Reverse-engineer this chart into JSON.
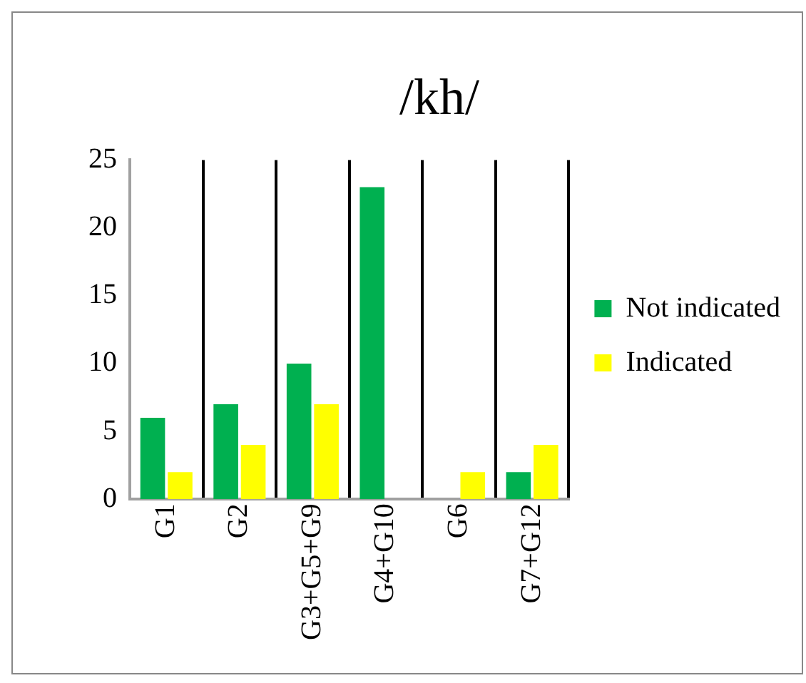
{
  "chart_data": {
    "type": "bar",
    "title": "/kh/",
    "categories": [
      "G1",
      "G2",
      "G3+G5+G9",
      "G4+G10",
      "G6",
      "G7+G12"
    ],
    "series": [
      {
        "name": "Not indicated",
        "color": "#00b050",
        "values": [
          6,
          7,
          10,
          23,
          0,
          2
        ]
      },
      {
        "name": "Indicated",
        "color": "#ffff00",
        "values": [
          2,
          4,
          7,
          0,
          2,
          4
        ]
      }
    ],
    "ylim": [
      0,
      25
    ],
    "yticks": [
      0,
      5,
      10,
      15,
      20,
      25
    ],
    "grid": "x",
    "legend": "right"
  }
}
